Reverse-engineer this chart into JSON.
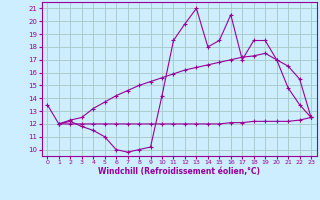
{
  "bg_color": "#cceeff",
  "grid_color": "#aacccc",
  "line_color": "#990099",
  "x_label": "Windchill (Refroidissement éolien,°C)",
  "xlim": [
    -0.5,
    23.5
  ],
  "ylim": [
    9.5,
    21.5
  ],
  "yticks": [
    10,
    11,
    12,
    13,
    14,
    15,
    16,
    17,
    18,
    19,
    20,
    21
  ],
  "xticks": [
    0,
    1,
    2,
    3,
    4,
    5,
    6,
    7,
    8,
    9,
    10,
    11,
    12,
    13,
    14,
    15,
    16,
    17,
    18,
    19,
    20,
    21,
    22,
    23
  ],
  "line1_x": [
    0,
    1,
    2,
    3,
    4,
    5,
    6,
    7,
    8,
    9,
    10,
    11,
    12,
    13,
    14,
    15,
    16,
    17,
    18,
    19,
    20,
    21,
    22,
    23
  ],
  "line1_y": [
    13.5,
    12.0,
    12.2,
    11.8,
    11.5,
    11.0,
    10.0,
    9.8,
    10.0,
    10.2,
    14.2,
    18.5,
    19.8,
    21.0,
    18.0,
    18.5,
    20.5,
    17.0,
    18.5,
    18.5,
    17.0,
    14.8,
    13.5,
    12.5
  ],
  "line2_x": [
    1,
    2,
    3,
    4,
    5,
    6,
    7,
    8,
    9,
    10,
    11,
    12,
    13,
    14,
    15,
    16,
    17,
    18,
    19,
    20,
    21,
    22,
    23
  ],
  "line2_y": [
    12.0,
    12.3,
    12.5,
    13.2,
    13.7,
    14.2,
    14.6,
    15.0,
    15.3,
    15.6,
    15.9,
    16.2,
    16.4,
    16.6,
    16.8,
    17.0,
    17.2,
    17.3,
    17.5,
    17.0,
    16.5,
    15.5,
    12.5
  ],
  "line3_x": [
    1,
    2,
    3,
    4,
    5,
    6,
    7,
    8,
    9,
    10,
    11,
    12,
    13,
    14,
    15,
    16,
    17,
    18,
    19,
    20,
    21,
    22,
    23
  ],
  "line3_y": [
    12.0,
    12.0,
    12.0,
    12.0,
    12.0,
    12.0,
    12.0,
    12.0,
    12.0,
    12.0,
    12.0,
    12.0,
    12.0,
    12.0,
    12.0,
    12.1,
    12.1,
    12.2,
    12.2,
    12.2,
    12.2,
    12.3,
    12.5
  ]
}
